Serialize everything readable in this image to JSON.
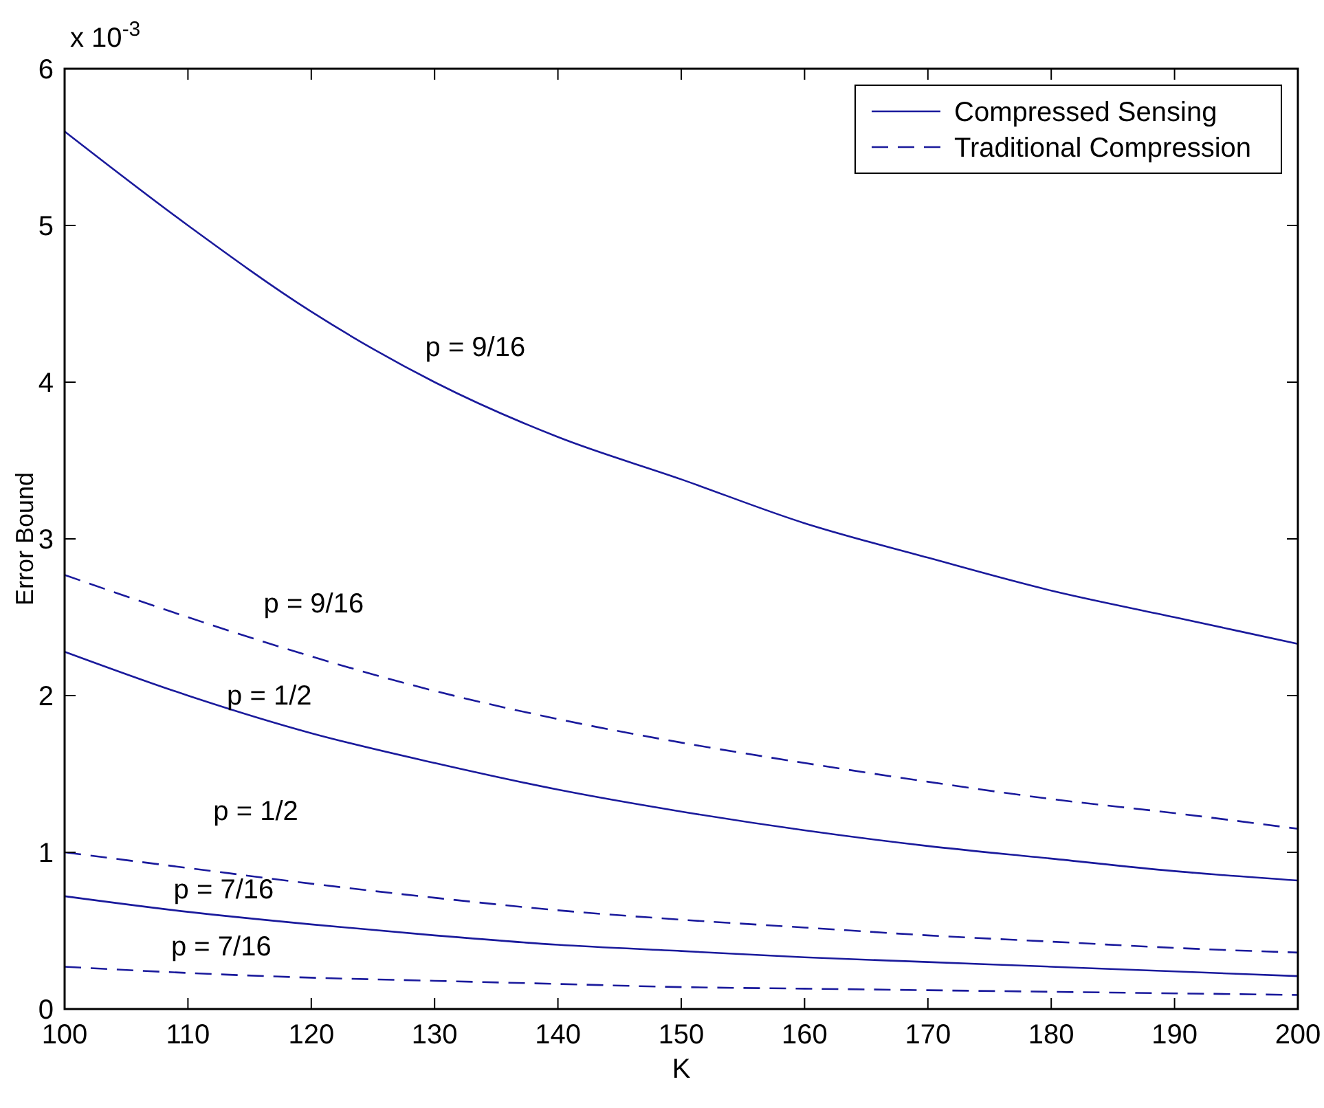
{
  "chart_data": {
    "type": "line",
    "xlabel": "K",
    "ylabel": "Error Bound",
    "x": [
      100,
      110,
      120,
      130,
      140,
      150,
      160,
      170,
      180,
      190,
      200
    ],
    "xlim": [
      100,
      200
    ],
    "xticks": [
      100,
      110,
      120,
      130,
      140,
      150,
      160,
      170,
      180,
      190,
      200
    ],
    "ylim": [
      0,
      6
    ],
    "yticks": [
      0,
      1,
      2,
      3,
      4,
      5,
      6
    ],
    "grid": false,
    "legend": "top right",
    "marker": "none",
    "series": [
      {
        "name": "Compressed Sensing",
        "color": "#1a1a9c",
        "line_style": "solid",
        "values": [
          5.6,
          5.0,
          4.45,
          4.0,
          3.65,
          3.38,
          3.1,
          2.88,
          2.67,
          2.5,
          2.33
        ]
      },
      {
        "name": "Traditional Compression",
        "color": "#1a1a9c",
        "line_style": "dashed",
        "values": [
          2.77,
          2.5,
          2.25,
          2.03,
          1.85,
          1.7,
          1.57,
          1.45,
          1.34,
          1.25,
          1.15
        ]
      },
      {
        "color": "#1a1a9c",
        "line_style": "solid",
        "values": [
          2.28,
          2.0,
          1.76,
          1.57,
          1.4,
          1.26,
          1.14,
          1.04,
          0.96,
          0.88,
          0.82
        ]
      },
      {
        "color": "#1a1a9c",
        "line_style": "dashed",
        "values": [
          1.0,
          0.9,
          0.8,
          0.71,
          0.63,
          0.57,
          0.52,
          0.47,
          0.43,
          0.39,
          0.36
        ]
      },
      {
        "color": "#1a1a9c",
        "line_style": "solid",
        "values": [
          0.72,
          0.62,
          0.54,
          0.47,
          0.41,
          0.37,
          0.33,
          0.3,
          0.27,
          0.24,
          0.21
        ]
      },
      {
        "color": "#1a1a9c",
        "line_style": "dashed",
        "values": [
          0.27,
          0.23,
          0.2,
          0.18,
          0.16,
          0.14,
          0.13,
          0.12,
          0.11,
          0.1,
          0.09
        ]
      }
    ],
    "annotations": [
      "x 10$^{-3}$",
      "p = 9/16",
      "p = 9/16",
      "p = 1/2",
      "p = 1/2",
      "p = 7/16",
      "p = 7/16"
    ]
  }
}
